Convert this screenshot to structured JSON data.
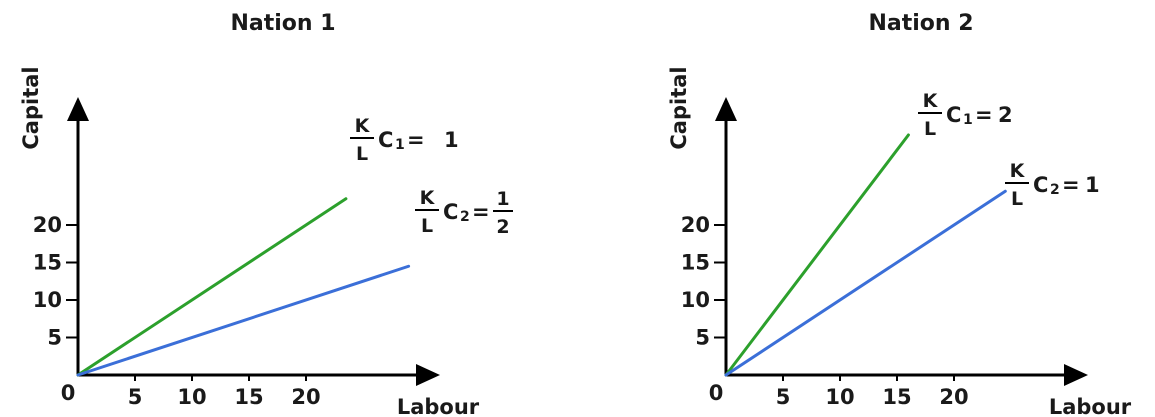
{
  "chart_data": [
    {
      "type": "line",
      "title": "Nation 1",
      "xlabel": "Labour",
      "ylabel": "Capital",
      "origin_label": "0",
      "x_ticks": [
        5,
        10,
        15,
        20
      ],
      "y_ticks": [
        5,
        10,
        15,
        20
      ],
      "xlim": [
        0,
        28
      ],
      "ylim": [
        0,
        31
      ],
      "grid": false,
      "series": [
        {
          "color": "#2ca02c",
          "x": [
            0,
            23.5
          ],
          "y": [
            0,
            23.5
          ],
          "annotation": {
            "frac_top": "K",
            "frac_bottom": "L",
            "letter": "C",
            "subscript": "1",
            "equals": "=",
            "value": "1",
            "value_is_fraction": false
          }
        },
        {
          "color": "#3b6fd8",
          "x": [
            0,
            29
          ],
          "y": [
            0,
            14.5
          ],
          "annotation": {
            "frac_top": "K",
            "frac_bottom": "L",
            "letter": "C",
            "subscript": "2",
            "equals": "=",
            "value_is_fraction": true,
            "value_top": "1",
            "value_bottom": "2"
          }
        }
      ]
    },
    {
      "type": "line",
      "title": "Nation 2",
      "xlabel": "Labour",
      "ylabel": "Capital",
      "origin_label": "0",
      "x_ticks": [
        5,
        10,
        15,
        20
      ],
      "y_ticks": [
        5,
        10,
        15,
        20
      ],
      "xlim": [
        0,
        28
      ],
      "ylim": [
        0,
        31
      ],
      "grid": false,
      "series": [
        {
          "color": "#2ca02c",
          "x": [
            0,
            16
          ],
          "y": [
            0,
            32
          ],
          "annotation": {
            "frac_top": "K",
            "frac_bottom": "L",
            "letter": "C",
            "subscript": "1",
            "equals": "=",
            "value": "2",
            "value_is_fraction": false
          }
        },
        {
          "color": "#3b6fd8",
          "x": [
            0,
            24.5
          ],
          "y": [
            0,
            24.5
          ],
          "annotation": {
            "frac_top": "K",
            "frac_bottom": "L",
            "letter": "C",
            "subscript": "2",
            "equals": "=",
            "value": "1",
            "value_is_fraction": false
          }
        }
      ]
    }
  ]
}
